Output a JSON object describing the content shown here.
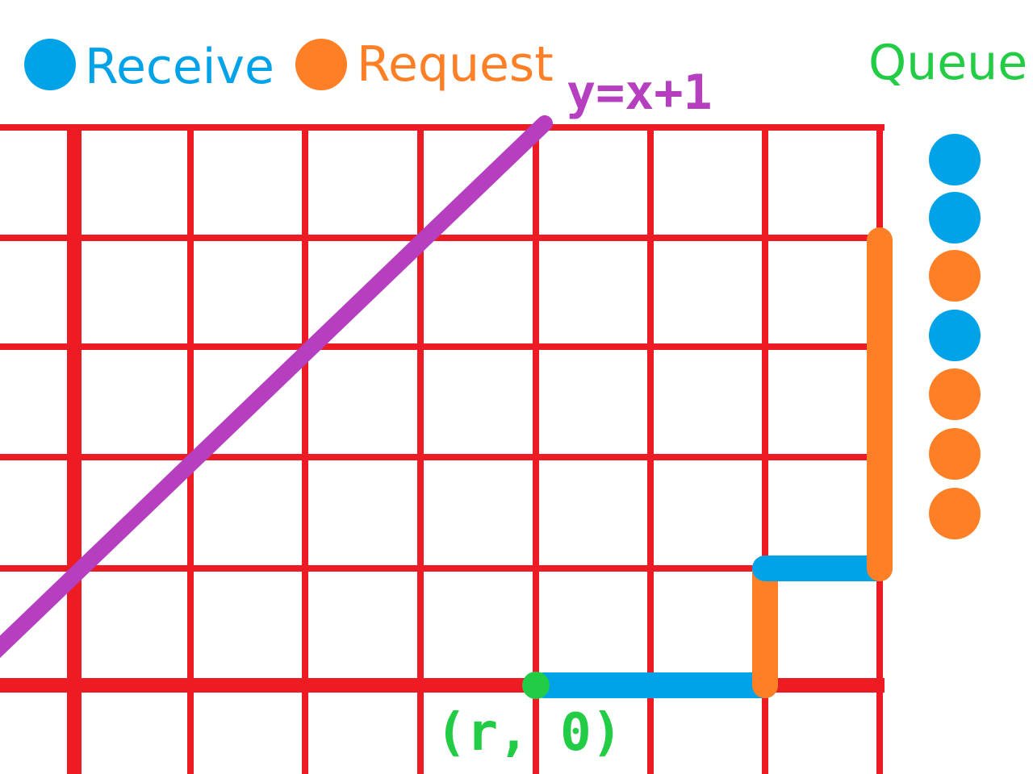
{
  "legend": {
    "receive_label": "Receive",
    "request_label": "Request",
    "queue_label": "Queue"
  },
  "colors": {
    "grid": "#ED1C24",
    "receive": "#00A2E8",
    "request": "#FF7F27",
    "queue_title": "#22CC44",
    "origin_point": "#22CC44",
    "diagonal": "#B53FBF"
  },
  "diagonal_label": "y=x+1",
  "origin_label": "(r, 0)",
  "queue": [
    "receive",
    "receive",
    "request",
    "receive",
    "request",
    "request",
    "request"
  ],
  "path": [
    {
      "kind": "receive",
      "from": [
        3,
        0
      ],
      "to": [
        5,
        0
      ]
    },
    {
      "kind": "request",
      "from": [
        5,
        0
      ],
      "to": [
        5,
        1
      ]
    },
    {
      "kind": "receive",
      "from": [
        5,
        1
      ],
      "to": [
        6,
        1
      ]
    },
    {
      "kind": "request",
      "from": [
        6,
        1
      ],
      "to": [
        6,
        4
      ]
    }
  ],
  "origin_point": [
    3,
    0
  ],
  "diagonal": {
    "from": [
      -1,
      0
    ],
    "to": [
      4,
      5
    ]
  }
}
